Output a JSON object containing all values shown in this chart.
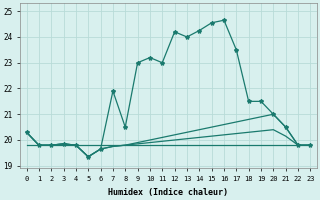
{
  "xlabel": "Humidex (Indice chaleur)",
  "x": [
    0,
    1,
    2,
    3,
    4,
    5,
    6,
    7,
    8,
    9,
    10,
    11,
    12,
    13,
    14,
    15,
    16,
    17,
    18,
    19,
    20,
    21,
    22,
    23
  ],
  "y_main": [
    20.3,
    19.8,
    19.8,
    19.85,
    19.8,
    19.35,
    19.65,
    21.9,
    20.5,
    23.0,
    23.2,
    23.0,
    24.2,
    24.0,
    24.25,
    24.55,
    24.65,
    23.5,
    21.5,
    21.5,
    21.0,
    20.5,
    19.8,
    19.8
  ],
  "y_line2": [
    20.3,
    19.8,
    19.8,
    19.85,
    19.8,
    19.35,
    19.65,
    19.75,
    19.8,
    19.9,
    20.0,
    20.1,
    20.2,
    20.3,
    20.4,
    20.5,
    20.6,
    20.7,
    20.8,
    20.9,
    21.0,
    20.5,
    19.8,
    19.8
  ],
  "y_line3": [
    20.3,
    19.8,
    19.8,
    19.85,
    19.8,
    19.35,
    19.65,
    19.75,
    19.8,
    19.85,
    19.9,
    19.95,
    20.0,
    20.05,
    20.1,
    20.15,
    20.2,
    20.25,
    20.3,
    20.35,
    20.4,
    20.15,
    19.8,
    19.8
  ],
  "y_flat": [
    19.8,
    19.8,
    19.8,
    19.8,
    19.8,
    19.8,
    19.8,
    19.8,
    19.8,
    19.8,
    19.8,
    19.8,
    19.8,
    19.8,
    19.8,
    19.8,
    19.8,
    19.8,
    19.8,
    19.8,
    19.8,
    19.8,
    19.8,
    19.8
  ],
  "line_color": "#1a7a6e",
  "bg_color": "#d8f0ee",
  "grid_color": "#b8dbd8",
  "ylim": [
    18.9,
    25.3
  ],
  "yticks": [
    19,
    20,
    21,
    22,
    23,
    24,
    25
  ],
  "xticks": [
    0,
    1,
    2,
    3,
    4,
    5,
    6,
    7,
    8,
    9,
    10,
    11,
    12,
    13,
    14,
    15,
    16,
    17,
    18,
    19,
    20,
    21,
    22,
    23
  ],
  "xlim": [
    -0.5,
    23.5
  ],
  "figsize": [
    3.2,
    2.0
  ],
  "dpi": 100
}
